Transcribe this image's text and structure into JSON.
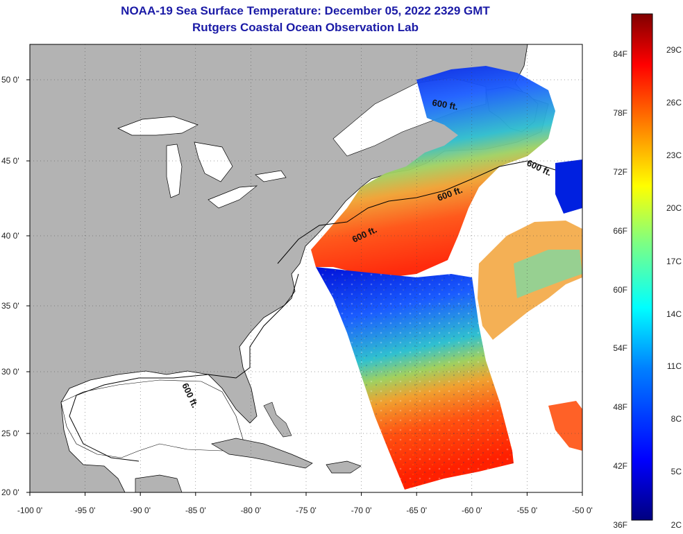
{
  "header": {
    "title": "NOAA-19 Sea Surface Temperature:  December 05, 2022 2329 GMT",
    "subtitle": "Rutgers Coastal Ocean Observation Lab"
  },
  "map": {
    "lon_ticks": [
      "-100 0'",
      "-95 0'",
      "-90 0'",
      "-85 0'",
      "-80 0'",
      "-75 0'",
      "-70 0'",
      "-65 0'",
      "-60 0'",
      "-55 0'",
      "-50 0'"
    ],
    "lat_ticks": [
      "50 0'",
      "45 0'",
      "40 0'",
      "35 0'",
      "30 0'",
      "25 0'",
      "20 0'"
    ],
    "contour_label": "600 ft.",
    "colors": {
      "land": "#b3b3b3",
      "cloud_or_nodata": "#ffffff",
      "coast": "#000000"
    }
  },
  "colorbar": {
    "f_labels": [
      "84F",
      "78F",
      "72F",
      "66F",
      "60F",
      "54F",
      "48F",
      "42F",
      "36F"
    ],
    "c_labels": [
      "29C",
      "26C",
      "23C",
      "20C",
      "17C",
      "14C",
      "11C",
      "8C",
      "5C",
      "2C"
    ],
    "range_c": [
      2,
      31
    ],
    "colors": [
      "#000080",
      "#0000ff",
      "#0080ff",
      "#00ffff",
      "#80ff80",
      "#ffff00",
      "#ff8000",
      "#ff0000",
      "#800000"
    ]
  }
}
